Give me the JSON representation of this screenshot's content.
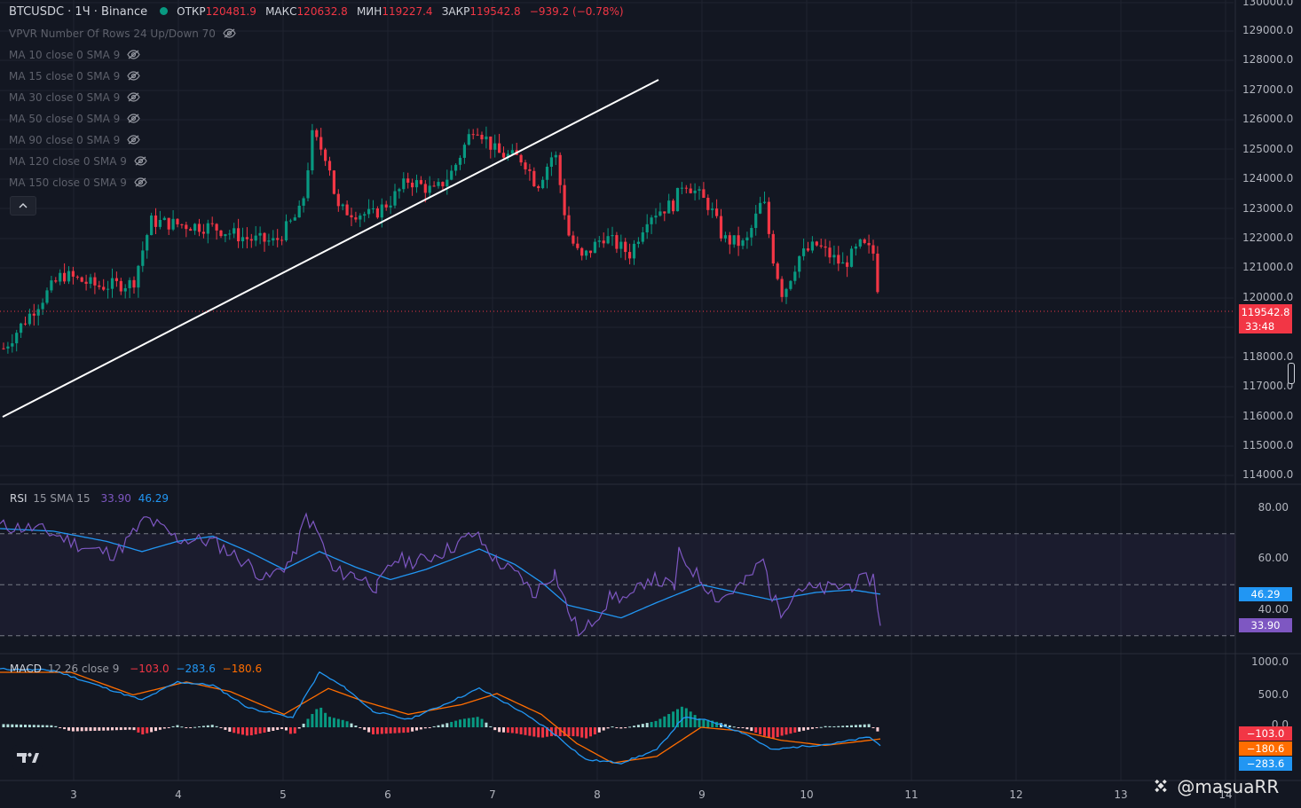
{
  "header": {
    "symbol": "BTCUSDC · 1Ч · Binance",
    "open_label": "ОТКР",
    "open": "120481.9",
    "high_label": "МАКС",
    "high": "120632.8",
    "low_label": "МИН",
    "low": "119227.4",
    "close_label": "ЗАКР",
    "close": "119542.8",
    "change": "−939.2 (−0.78%)"
  },
  "indicators": [
    "VPVR Number Of Rows 24 Up/Down 70",
    "MA 10 close 0 SMA 9",
    "MA 15 close 0 SMA 9",
    "MA 30 close 0 SMA 9",
    "MA 50 close 0 SMA 9",
    "MA 90 close 0 SMA 9",
    "MA 120 close 0 SMA 9",
    "MA 150 close 0 SMA 9"
  ],
  "price_axis": [
    "130000.0",
    "129000.0",
    "128000.0",
    "127000.0",
    "126000.0",
    "125000.0",
    "124000.0",
    "123000.0",
    "122000.0",
    "121000.0",
    "120000.0",
    "118000.0",
    "117000.0",
    "116000.0",
    "115000.0",
    "114000.0"
  ],
  "last_price_tag": {
    "price": "119542.8",
    "countdown": "33:48",
    "color": "#f23645"
  },
  "rsi": {
    "name": "RSI",
    "params": "15 SMA 15",
    "value": "33.90",
    "sma": "46.29",
    "axis": [
      "80.00",
      "60.00",
      "40.00"
    ],
    "rsi_color": "#7e57c2",
    "sma_color": "#2196f3"
  },
  "macd": {
    "name": "MACD",
    "params": "12 26 close 9",
    "hist": "−103.0",
    "macd": "−283.6",
    "signal": "−180.6",
    "axis": [
      "1000.0",
      "500.0",
      "0.0"
    ],
    "tags": [
      "−103.0",
      "−180.6",
      "−283.6"
    ],
    "macd_color": "#2196f3",
    "signal_color": "#ff6d00"
  },
  "time_axis": [
    "3",
    "4",
    "5",
    "6",
    "7",
    "8",
    "9",
    "10",
    "11",
    "12",
    "13",
    "14"
  ],
  "watermark": "@masuaRR",
  "colors": {
    "up": "#089981",
    "down": "#f23645",
    "background": "#131722",
    "grid": "#1f2330"
  }
}
